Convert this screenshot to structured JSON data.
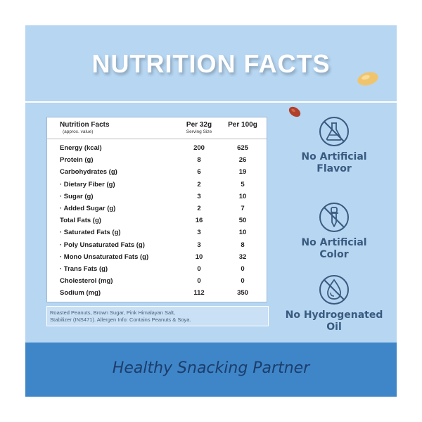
{
  "header": {
    "title": "NUTRITION FACTS"
  },
  "nutrition_table": {
    "title": "Nutrition Facts",
    "subtitle": "(approx. value)",
    "columns": [
      {
        "label": "Per 32g",
        "sublabel": "Serving Size"
      },
      {
        "label": "Per 100g",
        "sublabel": ""
      }
    ],
    "rows": [
      {
        "label": "Energy (kcal)",
        "per_serving": "200",
        "per_100g": "625"
      },
      {
        "label": "Protein (g)",
        "per_serving": "8",
        "per_100g": "26"
      },
      {
        "label": "Carbohydrates (g)",
        "per_serving": "6",
        "per_100g": "19"
      },
      {
        "label": "· Dietary Fiber (g)",
        "per_serving": "2",
        "per_100g": "5"
      },
      {
        "label": "· Sugar (g)",
        "per_serving": "3",
        "per_100g": "10"
      },
      {
        "label": "· Added Sugar (g)",
        "per_serving": "2",
        "per_100g": "7"
      },
      {
        "label": "Total Fats (g)",
        "per_serving": "16",
        "per_100g": "50"
      },
      {
        "label": "· Saturated Fats (g)",
        "per_serving": "3",
        "per_100g": "10"
      },
      {
        "label": "· Poly Unsaturated Fats (g)",
        "per_serving": "3",
        "per_100g": "8"
      },
      {
        "label": "· Mono Unsaturated Fats (g)",
        "per_serving": "10",
        "per_100g": "32"
      },
      {
        "label": "· Trans Fats (g)",
        "per_serving": "0",
        "per_100g": "0"
      },
      {
        "label": "Cholesterol (mg)",
        "per_serving": "0",
        "per_100g": "0"
      },
      {
        "label": "Sodium (mg)",
        "per_serving": "112",
        "per_100g": "350"
      }
    ]
  },
  "ingredients": {
    "line1": "Roasted Peanuts, Brown Sugar, Pink Himalayan Salt,",
    "line2": "Stabilizer (INS471). Allergen Info: Contains Peanuts & Soya."
  },
  "badges": [
    {
      "icon": "flask-icon",
      "line1": "No Artificial",
      "line2": "Flavor"
    },
    {
      "icon": "dropper-icon",
      "line1": "No Artificial",
      "line2": "Color"
    },
    {
      "icon": "oil-drop-icon",
      "line1": "No Hydrogenated",
      "line2": "Oil"
    }
  ],
  "footer": {
    "tagline": "Healthy Snacking Partner"
  },
  "colors": {
    "panel_background": "#b6d6f2",
    "footer_background": "#3f86c9",
    "badge_text": "#3a5a80",
    "tagline_text": "#1c3d6b"
  }
}
